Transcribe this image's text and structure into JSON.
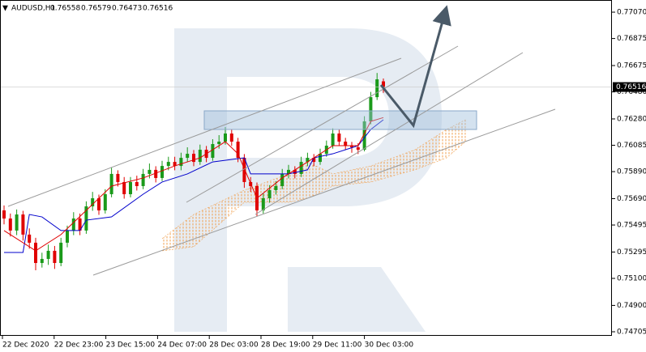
{
  "chart_data": {
    "type": "candlestick",
    "symbol": "AUDUSD,H1",
    "header_values": [
      0.76558,
      0.76579,
      0.76473,
      0.76516
    ],
    "current_price": 0.76516,
    "x_labels": [
      "22 Dec 2020",
      "22 Dec 23:00",
      "23 Dec 15:00",
      "24 Dec 07:00",
      "28 Dec 03:00",
      "28 Dec 19:00",
      "29 Dec 11:00",
      "30 Dec 03:00"
    ],
    "ylim": [
      0.74675,
      0.7716
    ],
    "yticks": [
      {
        "value": 0.7707,
        "label": "0.77070"
      },
      0.76875,
      0.76675,
      {
        "value": 0.7648,
        "label": "0.76480"
      },
      {
        "value": 0.7628,
        "label": "0.76280"
      },
      0.76085,
      {
        "value": 0.7589,
        "label": "0.75890"
      },
      {
        "value": 0.7569,
        "label": "0.75690"
      },
      0.75495,
      0.75295,
      {
        "value": 0.751,
        "label": "0.75100"
      },
      {
        "value": 0.749,
        "label": "0.74900"
      },
      0.74705
    ],
    "up_color": "#1a9a1a",
    "down_color": "#e00000",
    "open": [
      0.75603,
      0.75543,
      0.75454,
      0.75573,
      0.75424,
      0.75364,
      0.75214,
      0.75244,
      0.75304,
      0.75214,
      0.75364,
      0.75454,
      0.75543,
      0.75454,
      0.75633,
      0.75693,
      0.75603,
      0.75723,
      0.75873,
      0.75813,
      0.75723,
      0.75813,
      0.75783,
      0.75873,
      0.75903,
      0.75843,
      0.75932,
      0.75962,
      0.75932,
      0.75992,
      0.76022,
      0.75962,
      0.76052,
      0.75992,
      0.76094,
      0.76112,
      0.76172,
      0.76112,
      0.75992,
      0.75813,
      0.75783,
      0.75603,
      0.75693,
      0.75753,
      0.75783,
      0.75873,
      0.75903,
      0.75873,
      0.75962,
      0.75992,
      0.75962,
      0.76022,
      0.76082,
      0.76172,
      0.76112,
      0.76082,
      0.7607,
      0.76052,
      0.76262,
      0.76441,
      0.76558
    ],
    "high": [
      0.7564,
      0.7558,
      0.7561,
      0.756,
      0.7547,
      0.754,
      0.7529,
      0.7535,
      0.7534,
      0.754,
      0.7549,
      0.7559,
      0.7558,
      0.7567,
      0.7574,
      0.7572,
      0.7576,
      0.7592,
      0.759,
      0.7585,
      0.7585,
      0.7586,
      0.7591,
      0.7595,
      0.7593,
      0.7597,
      0.76,
      0.76,
      0.7603,
      0.7607,
      0.7605,
      0.7609,
      0.7608,
      0.7613,
      0.7616,
      0.7622,
      0.762,
      0.7614,
      0.7602,
      0.7585,
      0.7581,
      0.7573,
      0.7579,
      0.7582,
      0.7591,
      0.7594,
      0.7593,
      0.76,
      0.7603,
      0.7602,
      0.7606,
      0.7612,
      0.7621,
      0.762,
      0.7614,
      0.7611,
      0.761,
      0.763,
      0.7648,
      0.7662,
      0.76579
    ],
    "low": [
      0.755,
      0.7541,
      0.7542,
      0.7538,
      0.7532,
      0.7516,
      0.7518,
      0.752,
      0.7517,
      0.7519,
      0.7533,
      0.7542,
      0.7542,
      0.7543,
      0.756,
      0.7557,
      0.7558,
      0.757,
      0.7578,
      0.7569,
      0.757,
      0.7575,
      0.7576,
      0.7584,
      0.7581,
      0.7582,
      0.759,
      0.759,
      0.759,
      0.7596,
      0.7593,
      0.7594,
      0.7596,
      0.7597,
      0.7606,
      0.7609,
      0.7608,
      0.7596,
      0.7577,
      0.7574,
      0.7556,
      0.7558,
      0.7566,
      0.7572,
      0.7576,
      0.7584,
      0.7584,
      0.7585,
      0.7593,
      0.7593,
      0.7594,
      0.76,
      0.7606,
      0.7608,
      0.7605,
      0.7603,
      0.7602,
      0.7604,
      0.7624,
      0.7642,
      0.76473
    ],
    "close": [
      0.75543,
      0.75454,
      0.75573,
      0.75424,
      0.75364,
      0.75214,
      0.75244,
      0.75304,
      0.75214,
      0.75364,
      0.75454,
      0.75543,
      0.75454,
      0.75633,
      0.75693,
      0.75603,
      0.75723,
      0.75873,
      0.75813,
      0.75723,
      0.75813,
      0.75783,
      0.75873,
      0.75903,
      0.75843,
      0.75932,
      0.75962,
      0.75932,
      0.75992,
      0.76022,
      0.75962,
      0.76052,
      0.75992,
      0.76094,
      0.76112,
      0.76172,
      0.76112,
      0.75992,
      0.75813,
      0.75783,
      0.75603,
      0.75693,
      0.75753,
      0.75783,
      0.75873,
      0.75903,
      0.75873,
      0.75962,
      0.75992,
      0.75962,
      0.76022,
      0.76082,
      0.76172,
      0.76112,
      0.76082,
      0.7607,
      0.76052,
      0.76262,
      0.76441,
      0.76573,
      0.76516
    ],
    "kijun": {
      "color": "#0000cc",
      "index": [
        0,
        3,
        4,
        6,
        9,
        12,
        13,
        17,
        22,
        25,
        29,
        33,
        38,
        39,
        45,
        48,
        49,
        52,
        56,
        58,
        60
      ],
      "values": [
        0.75292,
        0.75292,
        0.75573,
        0.75555,
        0.75454,
        0.75454,
        0.75531,
        0.75555,
        0.75723,
        0.75813,
        0.75873,
        0.75962,
        0.75992,
        0.75873,
        0.75873,
        0.75903,
        0.75992,
        0.76022,
        0.76082,
        0.76202,
        0.76274
      ]
    },
    "tenkan": {
      "color": "#e00000",
      "index": [
        0,
        5,
        9,
        13,
        17,
        22,
        27,
        31,
        35,
        37,
        40,
        44,
        48,
        52,
        56,
        58,
        60
      ],
      "values": [
        0.75454,
        0.75304,
        0.75424,
        0.75603,
        0.75783,
        0.75843,
        0.75932,
        0.75992,
        0.76112,
        0.76022,
        0.75693,
        0.75843,
        0.75962,
        0.76082,
        0.76082,
        0.76262,
        0.7629
      ]
    },
    "cloud": {
      "color": "#f0a050",
      "index": [
        25,
        30,
        38,
        45,
        48,
        52,
        58,
        65,
        70,
        73
      ],
      "span_a": [
        0.75394,
        0.75573,
        0.75753,
        0.75873,
        0.75962,
        0.75873,
        0.75932,
        0.76052,
        0.76202,
        0.76274
      ],
      "span_b": [
        0.75304,
        0.75334,
        0.75663,
        0.75663,
        0.75693,
        0.75783,
        0.75813,
        0.75903,
        0.75992,
        0.76112
      ]
    }
  }
}
